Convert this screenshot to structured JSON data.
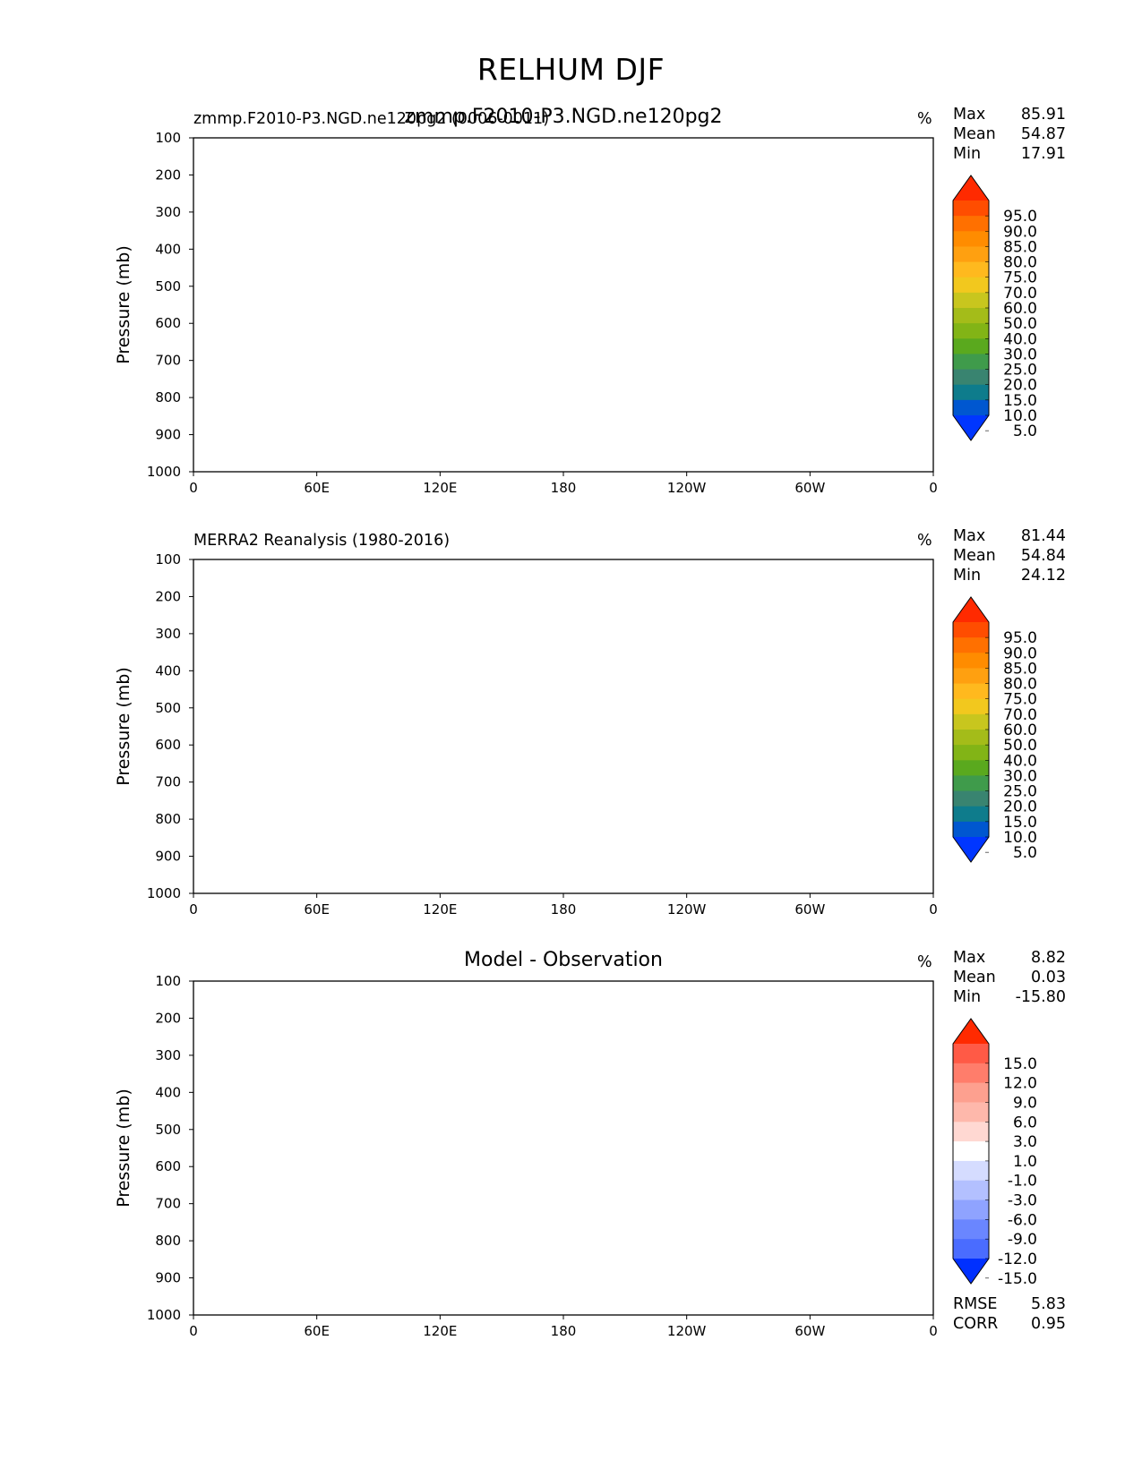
{
  "figure": {
    "title": "RELHUM DJF"
  },
  "chart_data": [
    {
      "type": "contour",
      "title_left": "zmmp.F2010-P3.NGD.ne120pg2 (0006-0011)",
      "title_center": "zmmp.F2010-P3.NGD.ne120pg2",
      "units": "%",
      "ylabel": "Pressure (mb)",
      "yticks": [
        "100",
        "200",
        "300",
        "400",
        "500",
        "600",
        "700",
        "800",
        "900",
        "1000"
      ],
      "xticks": [
        "0",
        "60E",
        "120E",
        "180",
        "120W",
        "60W",
        "0"
      ],
      "ylim": [
        1000,
        100
      ],
      "stats": [
        {
          "label": "Max",
          "value": "85.91"
        },
        {
          "label": "Mean",
          "value": "54.87"
        },
        {
          "label": "Min",
          "value": "17.91"
        }
      ],
      "colorbar": {
        "labels": [
          "95.0",
          "90.0",
          "85.0",
          "80.0",
          "75.0",
          "70.0",
          "60.0",
          "50.0",
          "40.0",
          "30.0",
          "25.0",
          "20.0",
          "15.0",
          "10.0",
          "5.0"
        ],
        "colors": [
          "#ff2a00",
          "#ff4d00",
          "#ff7000",
          "#ff8c00",
          "#ffa010",
          "#ffb91e",
          "#f2c81e",
          "#c8c61e",
          "#a4bc19",
          "#82b416",
          "#5aa91e",
          "#3f9b4b",
          "#398470",
          "#0e7c8c",
          "#0057d0",
          "#0036ff"
        ]
      }
    },
    {
      "type": "contour",
      "title_left": "MERRA2 Reanalysis (1980-2016)",
      "units": "%",
      "ylabel": "Pressure (mb)",
      "yticks": [
        "100",
        "200",
        "300",
        "400",
        "500",
        "600",
        "700",
        "800",
        "900",
        "1000"
      ],
      "xticks": [
        "0",
        "60E",
        "120E",
        "180",
        "120W",
        "60W",
        "0"
      ],
      "ylim": [
        1000,
        100
      ],
      "stats": [
        {
          "label": "Max",
          "value": "81.44"
        },
        {
          "label": "Mean",
          "value": "54.84"
        },
        {
          "label": "Min",
          "value": "24.12"
        }
      ],
      "colorbar": {
        "labels": [
          "95.0",
          "90.0",
          "85.0",
          "80.0",
          "75.0",
          "70.0",
          "60.0",
          "50.0",
          "40.0",
          "30.0",
          "25.0",
          "20.0",
          "15.0",
          "10.0",
          "5.0"
        ],
        "colors": [
          "#ff2a00",
          "#ff4d00",
          "#ff7000",
          "#ff8c00",
          "#ffa010",
          "#ffb91e",
          "#f2c81e",
          "#c8c61e",
          "#a4bc19",
          "#82b416",
          "#5aa91e",
          "#3f9b4b",
          "#398470",
          "#0e7c8c",
          "#0057d0",
          "#0036ff"
        ]
      }
    },
    {
      "type": "contour",
      "title_center": "Model - Observation",
      "units": "%",
      "ylabel": "Pressure (mb)",
      "yticks": [
        "100",
        "200",
        "300",
        "400",
        "500",
        "600",
        "700",
        "800",
        "900",
        "1000"
      ],
      "xticks": [
        "0",
        "60E",
        "120E",
        "180",
        "120W",
        "60W",
        "0"
      ],
      "ylim": [
        1000,
        100
      ],
      "stats": [
        {
          "label": "Max",
          "value": "8.82"
        },
        {
          "label": "Mean",
          "value": "0.03"
        },
        {
          "label": "Min",
          "value": "-15.80"
        }
      ],
      "stats_bottom": [
        {
          "label": "RMSE",
          "value": "5.83"
        },
        {
          "label": "CORR",
          "value": "0.95"
        }
      ],
      "colorbar": {
        "labels": [
          "15.0",
          "12.0",
          "9.0",
          "6.0",
          "3.0",
          "1.0",
          "-1.0",
          "-3.0",
          "-6.0",
          "-9.0",
          "-12.0",
          "-15.0"
        ],
        "colors": [
          "#ff2a00",
          "#ff5a46",
          "#ff7d6b",
          "#fda08f",
          "#feb8ab",
          "#ffd8d2",
          "#ffffff",
          "#d5dcff",
          "#b3c0ff",
          "#8fa3ff",
          "#6a86ff",
          "#4a6cff",
          "#0030ff"
        ]
      }
    }
  ]
}
